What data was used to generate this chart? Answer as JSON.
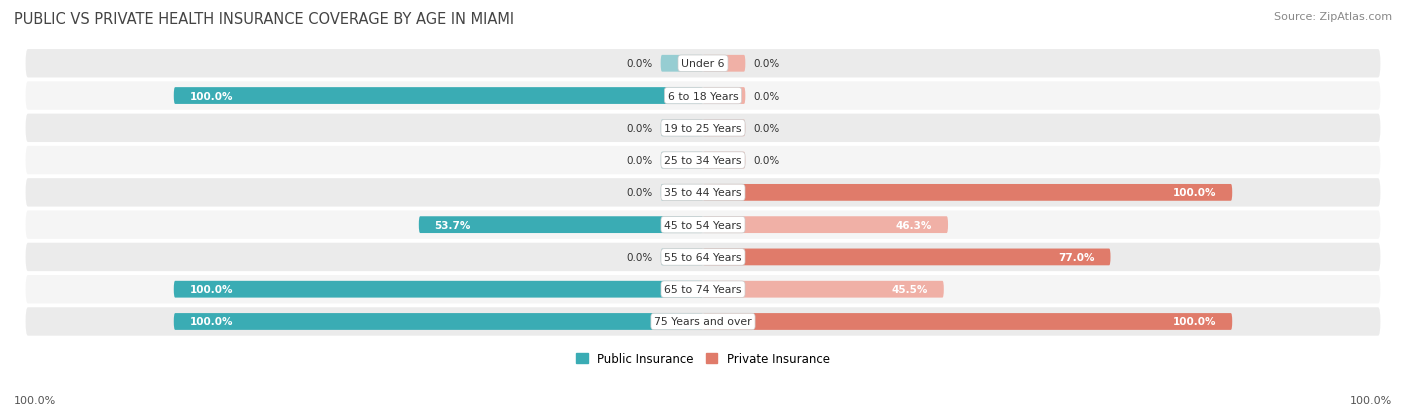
{
  "title": "PUBLIC VS PRIVATE HEALTH INSURANCE COVERAGE BY AGE IN MIAMI",
  "source": "Source: ZipAtlas.com",
  "categories": [
    "Under 6",
    "6 to 18 Years",
    "19 to 25 Years",
    "25 to 34 Years",
    "35 to 44 Years",
    "45 to 54 Years",
    "55 to 64 Years",
    "65 to 74 Years",
    "75 Years and over"
  ],
  "public_values": [
    0.0,
    100.0,
    0.0,
    0.0,
    0.0,
    53.7,
    0.0,
    100.0,
    100.0
  ],
  "private_values": [
    0.0,
    0.0,
    0.0,
    0.0,
    100.0,
    46.3,
    77.0,
    45.5,
    100.0
  ],
  "public_color_full": "#3AACB4",
  "public_color_light": "#96CDD2",
  "private_color_full": "#E07B6A",
  "private_color_light": "#F0B0A6",
  "row_bg_color": "#EBEBEB",
  "row_bg_alt": "#F5F5F5",
  "fig_bg_color": "#FFFFFF",
  "label_dark": "#333333",
  "label_white": "#FFFFFF",
  "axis_label_left": "100.0%",
  "axis_label_right": "100.0%",
  "legend_public": "Public Insurance",
  "legend_private": "Private Insurance",
  "figsize": [
    14.06,
    4.14
  ],
  "dpi": 100
}
